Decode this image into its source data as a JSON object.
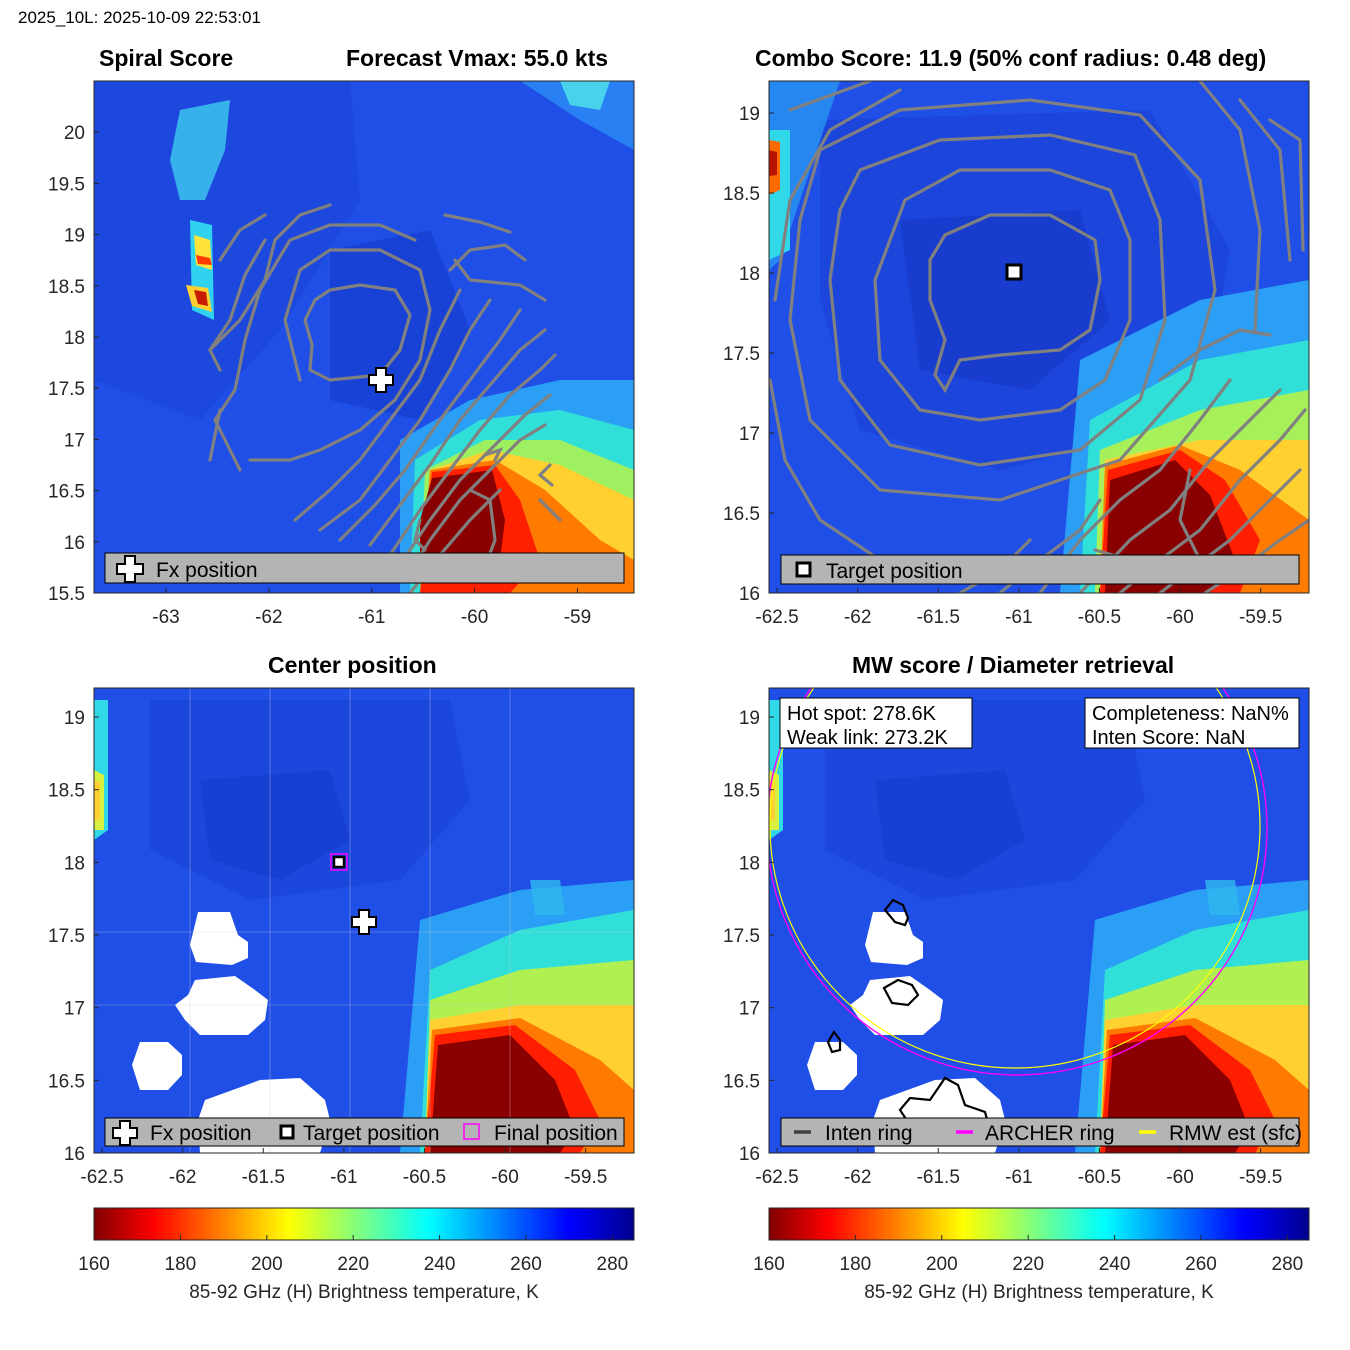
{
  "header": {
    "stamp": "2025_10L: 2025-10-09 22:53:01"
  },
  "panels": {
    "spiral": {
      "title_left": "Spiral Score",
      "title_right": "Forecast Vmax: 55.0 kts",
      "legend": [
        "Fx position"
      ]
    },
    "combo": {
      "title": "Combo Score: 11.9  (50% conf radius: 0.48 deg)",
      "legend": [
        "Target position"
      ]
    },
    "center": {
      "title": "Center position",
      "legend": [
        "Fx position",
        "Target position",
        "Final position"
      ]
    },
    "mw": {
      "title": "MW score / Diameter retrieval",
      "legend": [
        "Inten ring",
        "ARCHER ring",
        "RMW est (sfc)"
      ],
      "box_left": [
        "Hot spot: 278.6K",
        "Weak link: 273.2K"
      ],
      "box_right": [
        "Completeness: NaN%",
        "Inten Score: NaN"
      ]
    }
  },
  "colorbar": {
    "label": "85-92 GHz (H) Brightness temperature, K",
    "ticks": [
      "160",
      "180",
      "200",
      "220",
      "240",
      "260",
      "280"
    ],
    "range": [
      160,
      285
    ],
    "colormap": "jet-reversed"
  },
  "chart_data": [
    {
      "type": "heatmap",
      "name": "Spiral Score",
      "xticks": [
        "-63",
        "-62",
        "-61",
        "-60",
        "-59"
      ],
      "yticks": [
        "20",
        "19.5",
        "19",
        "18.5",
        "18",
        "17.5",
        "17",
        "16.5",
        "16",
        "15.5"
      ],
      "xlim": [
        -63.7,
        -58.45
      ],
      "ylim": [
        15.5,
        20.5
      ],
      "markers": [
        {
          "label": "Fx position",
          "x": -60.9,
          "y": 17.6
        }
      ]
    },
    {
      "type": "heatmap",
      "name": "Combo Score",
      "xticks": [
        "-62.5",
        "-62",
        "-61.5",
        "-61",
        "-60.5",
        "-60",
        "-59.5"
      ],
      "yticks": [
        "19",
        "18.5",
        "18",
        "17.5",
        "17",
        "16.5",
        "16"
      ],
      "xlim": [
        -62.55,
        -59.2
      ],
      "ylim": [
        16.0,
        19.2
      ],
      "markers": [
        {
          "label": "Target position",
          "x": -61.07,
          "y": 17.99
        }
      ]
    },
    {
      "type": "heatmap",
      "name": "Center position",
      "xticks": [
        "-62.5",
        "-62",
        "-61.5",
        "-61",
        "-60.5",
        "-60",
        "-59.5"
      ],
      "yticks": [
        "19",
        "18.5",
        "18",
        "17.5",
        "17",
        "16.5",
        "16"
      ],
      "xlim": [
        -62.55,
        -59.2
      ],
      "ylim": [
        16.0,
        19.2
      ],
      "markers": [
        {
          "label": "Fx position",
          "x": -60.9,
          "y": 17.6
        },
        {
          "label": "Target position",
          "x": -61.07,
          "y": 17.99
        },
        {
          "label": "Final position",
          "x": -61.07,
          "y": 17.99
        }
      ]
    },
    {
      "type": "heatmap",
      "name": "MW score / Diameter retrieval",
      "xticks": [
        "-62.5",
        "-62",
        "-61.5",
        "-61",
        "-60.5",
        "-60",
        "-59.5"
      ],
      "yticks": [
        "19",
        "18.5",
        "18",
        "17.5",
        "17",
        "16.5",
        "16"
      ],
      "xlim": [
        -62.55,
        -59.2
      ],
      "ylim": [
        16.0,
        19.2
      ]
    }
  ]
}
